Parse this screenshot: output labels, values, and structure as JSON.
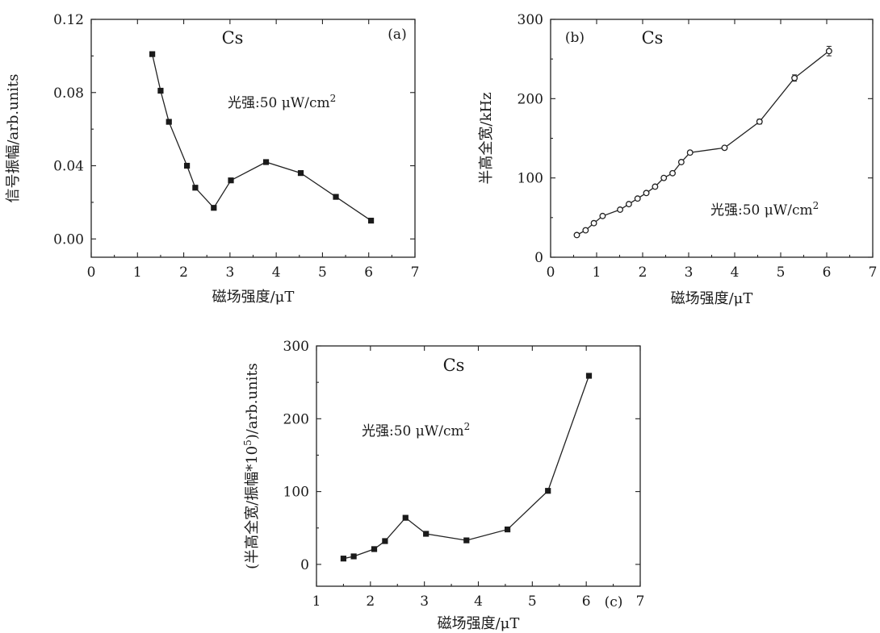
{
  "chart_data": [
    {
      "id": "a",
      "type": "line",
      "panel_label": "(a)",
      "species_label": "Cs",
      "annotation": "光强:50 μW/cm²",
      "xlabel": "磁场强度/μT",
      "ylabel": "信号振幅/arb.units",
      "xlim": [
        0,
        7
      ],
      "ylim": [
        -0.01,
        0.12
      ],
      "xticks": [
        0,
        1,
        2,
        3,
        4,
        5,
        6,
        7
      ],
      "yticks": [
        0.0,
        0.04,
        0.08,
        0.12
      ],
      "xtick_labels": [
        "0",
        "1",
        "2",
        "3",
        "4",
        "5",
        "6",
        "7"
      ],
      "ytick_labels": [
        "0.00",
        "0.04",
        "0.08",
        "0.12"
      ],
      "marker": "square-filled",
      "grid": false,
      "series": [
        {
          "x": [
            1.32,
            1.5,
            1.68,
            2.07,
            2.25,
            2.65,
            3.02,
            3.78,
            4.53,
            5.29,
            6.05
          ],
          "y": [
            0.101,
            0.081,
            0.064,
            0.04,
            0.028,
            0.017,
            0.032,
            0.042,
            0.036,
            0.023,
            0.01
          ]
        }
      ]
    },
    {
      "id": "b",
      "type": "line",
      "panel_label": "(b)",
      "species_label": "Cs",
      "annotation": "光强:50 μW/cm²",
      "xlabel": "磁场强度/μT",
      "ylabel": "半高全宽/kHz",
      "xlim": [
        0,
        7
      ],
      "ylim": [
        0,
        300
      ],
      "xticks": [
        0,
        1,
        2,
        3,
        4,
        5,
        6,
        7
      ],
      "yticks": [
        0,
        100,
        200,
        300
      ],
      "xtick_labels": [
        "0",
        "1",
        "2",
        "3",
        "4",
        "5",
        "6",
        "7"
      ],
      "ytick_labels": [
        "0",
        "100",
        "200",
        "300"
      ],
      "marker": "circle-open",
      "grid": false,
      "series": [
        {
          "x": [
            0.57,
            0.76,
            0.94,
            1.13,
            1.51,
            1.7,
            1.89,
            2.08,
            2.27,
            2.46,
            2.65,
            2.84,
            3.03,
            3.78,
            4.54,
            5.3,
            6.05
          ],
          "y": [
            28,
            34,
            43,
            52,
            60,
            67,
            74,
            81,
            89,
            100,
            106,
            120,
            132,
            138,
            171,
            226,
            260
          ],
          "err": [
            1,
            1,
            1,
            1,
            1,
            1,
            1,
            1,
            1,
            1,
            1,
            2,
            2,
            2,
            3,
            4,
            6
          ]
        }
      ]
    },
    {
      "id": "c",
      "type": "line",
      "panel_label": "(c)",
      "species_label": "Cs",
      "annotation": "光强:50 μW/cm²",
      "xlabel": "磁场强度/μT",
      "ylabel_parts": [
        "(半高全宽/振幅*10",
        "5",
        ")/arb.units"
      ],
      "xlim": [
        1,
        7
      ],
      "ylim": [
        -30,
        300
      ],
      "xticks": [
        1,
        2,
        3,
        4,
        5,
        6,
        7
      ],
      "yticks": [
        0,
        100,
        200,
        300
      ],
      "xtick_labels": [
        "1",
        "2",
        "3",
        "4",
        "5",
        "6",
        "7"
      ],
      "ytick_labels": [
        "0",
        "100",
        "200",
        "300"
      ],
      "marker": "square-filled",
      "grid": false,
      "series": [
        {
          "x": [
            1.5,
            1.69,
            2.07,
            2.27,
            2.65,
            3.03,
            3.78,
            4.54,
            5.29,
            6.05
          ],
          "y": [
            8,
            11,
            21,
            32,
            64,
            42,
            33,
            48,
            101,
            259
          ]
        }
      ]
    }
  ]
}
